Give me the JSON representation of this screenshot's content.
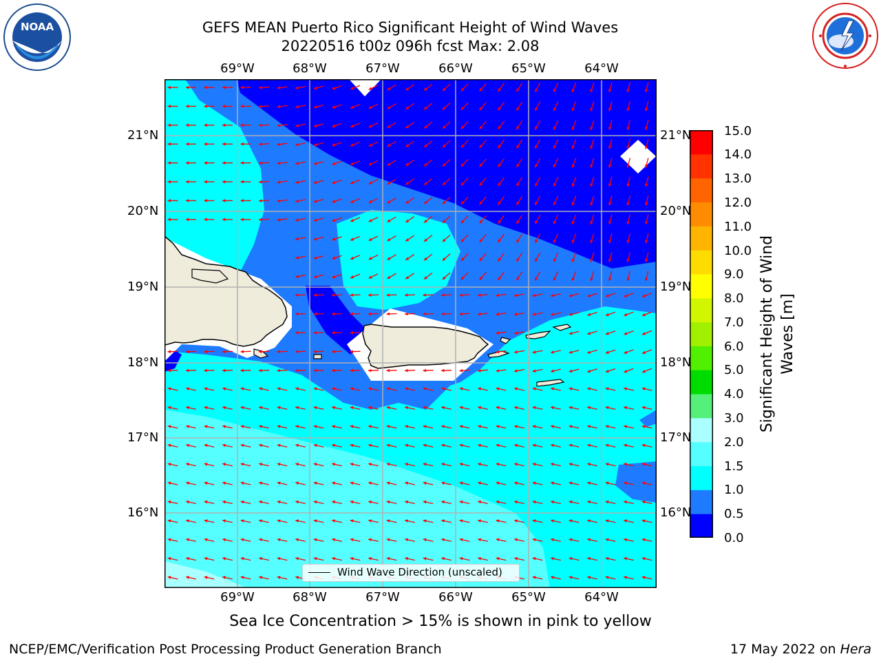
{
  "header": {
    "title_line1": "GEFS MEAN Puerto Rico Significant Height of Wind Waves",
    "title_line2": "20220516 t00z 096h fcst   Max: 2.08"
  },
  "logos": {
    "left": {
      "text": "NOAA",
      "ring_text": "NATIONAL OCEANIC AND ATMOSPHERIC ADMINISTRATION · U.S. DEPARTMENT OF COMMERCE"
    },
    "right": {
      "ring_text": "NATIONAL WEATHER SERVICE"
    }
  },
  "map": {
    "lon_labels": [
      "69°W",
      "68°W",
      "67°W",
      "66°W",
      "65°W",
      "64°W"
    ],
    "lat_labels": [
      "21°N",
      "20°N",
      "19°N",
      "18°N",
      "17°N",
      "16°N"
    ],
    "legend_label": "Wind Wave Direction (unscaled)",
    "land_color": "#efecdc",
    "arrow_color": "#ff0000"
  },
  "colorbar": {
    "label": "Significant Height of Wind Waves [m]",
    "ticks": [
      "15.0",
      "14.0",
      "13.0",
      "12.0",
      "11.0",
      "10.0",
      "9.0",
      "8.0",
      "7.0",
      "6.0",
      "5.0",
      "4.0",
      "3.0",
      "2.0",
      "1.5",
      "1.0",
      "0.5",
      "0.0"
    ],
    "colors_bottom_to_top": [
      "#0000ff",
      "#1e7bff",
      "#00ffff",
      "#55ffff",
      "#aaffff",
      "#55f07a",
      "#00dc00",
      "#50f000",
      "#a0f000",
      "#d2f500",
      "#ffff00",
      "#ffdc00",
      "#ffb400",
      "#ff8c00",
      "#ff6400",
      "#ff3200",
      "#ff0000"
    ]
  },
  "footer": {
    "note": "Sea Ice Concentration > 15% is shown in pink to yellow",
    "left": "NCEP/EMC/Verification Post Processing Product Generation Branch",
    "right_prefix": "17 May 2022 on ",
    "right_machine": "Hera"
  }
}
